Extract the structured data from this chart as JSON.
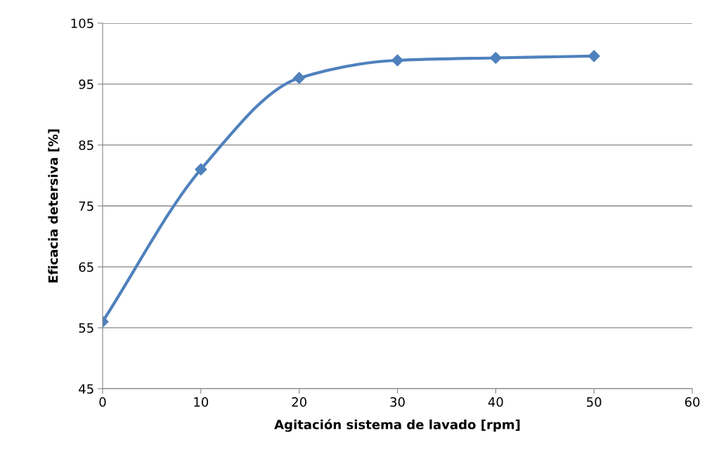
{
  "chart_data": {
    "type": "line",
    "xlabel": "Agitación sistema de lavado [rpm]",
    "ylabel": "Eficacia detersiva [%]",
    "x": [
      0,
      10,
      20,
      30,
      40,
      50
    ],
    "series": [
      {
        "color": "#4f81bd",
        "values": [
          56,
          81,
          96,
          98.9,
          99.3,
          99.6
        ]
      }
    ],
    "xlim": [
      0,
      60
    ],
    "xticks": [
      0,
      10,
      20,
      30,
      40,
      50,
      60
    ],
    "ylim": [
      45,
      105
    ],
    "yticks": [
      45,
      55,
      65,
      75,
      85,
      95,
      105
    ],
    "grid": "y",
    "marker": "diamond",
    "line_style": "solid"
  }
}
